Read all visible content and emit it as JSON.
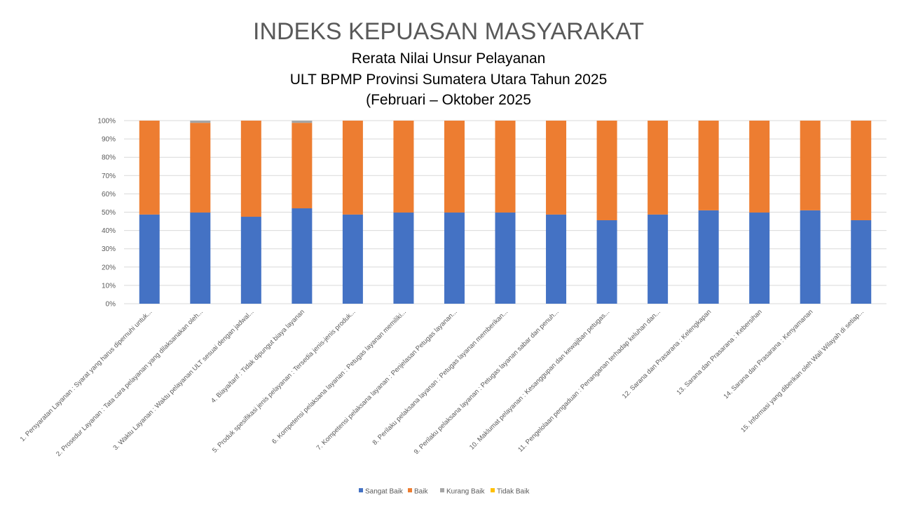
{
  "chart_data": {
    "type": "bar",
    "stacked": "percent",
    "title": "INDEKS KEPUASAN MASYARAKAT",
    "subtitle": [
      "Rerata Nilai Unsur Pelayanan",
      "ULT BPMP Provinsi Sumatera Utara Tahun 2025",
      "(Februari – Oktober 2025"
    ],
    "xlabel": "",
    "ylabel": "",
    "ylim": [
      0,
      100
    ],
    "yticks": [
      "0%",
      "10%",
      "20%",
      "30%",
      "40%",
      "50%",
      "60%",
      "70%",
      "80%",
      "90%",
      "100%"
    ],
    "grid": true,
    "legend_position": "bottom",
    "categories": [
      "1. Persyaratan Layanan : Syarat yang harus dipernuhi untuk...",
      "2.  Prosedur Layanan : Tata cara pelayanan yang dilaksanakan oleh...",
      "3. Waktu Layanan : Waktu pelayanan ULT sesuai dengan jadwal...",
      "4. Biaya/tarif : Tidak dipungut biaya layanan",
      "5. Produk spesifikasi jenis pelayanan : Tersedia jenis-jenis produk...",
      "6. Kompetensi pelaksana layanan : Petugas layanan memiliki...",
      "7. Kompetensi pelaksana layanan : Penjelasan Petugas layanan...",
      "8. Perilaku pelaksana layanan : Petugas layanan memberikan...",
      "9. Perilaku pelaksana layanan : Petugas layanan sabar dan penuh...",
      "10. Maklumat pelayanan : Kesanggupan dan kewajiban petugas...",
      "11. Pengelolaan pengaduan : Penanganan terhadap keluhan dan...",
      "12. Sarana dan Prasarana : Kelengkapan",
      "13. Sarana dan Prasarana : Kebersihan",
      "14. Sarana dan Prasarana : Kenyamanan",
      "15. Informasi yang diberikan oleh Wali Wilayah di setiap..."
    ],
    "series": [
      {
        "name": "Sangat Baik",
        "color": "#4472C4",
        "values": [
          48.7,
          49.8,
          47.5,
          52.1,
          48.7,
          49.8,
          49.8,
          49.8,
          48.7,
          45.6,
          48.7,
          51.0,
          49.8,
          51.0,
          45.6
        ]
      },
      {
        "name": "Baik",
        "color": "#ED7D31",
        "values": [
          51.3,
          49.0,
          52.5,
          46.7,
          51.3,
          50.2,
          50.2,
          50.2,
          51.3,
          54.4,
          51.3,
          49.0,
          50.2,
          49.0,
          54.4
        ]
      },
      {
        "name": "Kurang Baik",
        "color": "#A5A5A5",
        "values": [
          0,
          1.2,
          0,
          1.2,
          0,
          0,
          0,
          0,
          0,
          0,
          0,
          0,
          0,
          0,
          0
        ]
      },
      {
        "name": "Tidak Baik",
        "color": "#FFC000",
        "values": [
          0,
          0,
          0,
          0,
          0,
          0,
          0,
          0,
          0,
          0,
          0,
          0,
          0,
          0,
          0
        ]
      }
    ]
  }
}
